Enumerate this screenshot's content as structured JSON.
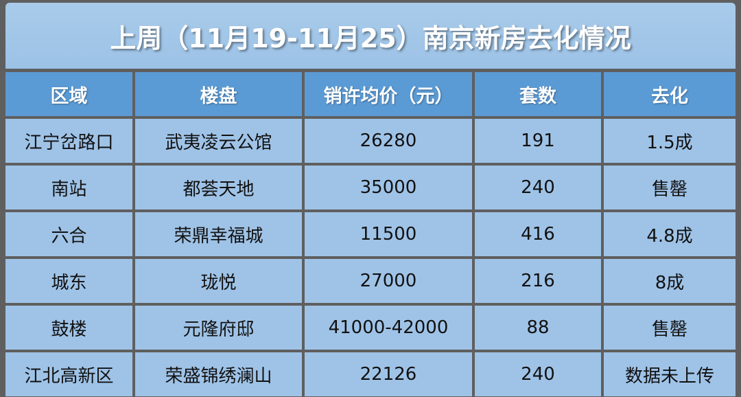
{
  "header": {
    "title": "上周（11月19-11月25）南京新房去化情况"
  },
  "table": {
    "columns": [
      "区域",
      "楼盘",
      "销许均价（元）",
      "套数",
      "去化"
    ],
    "rows": [
      [
        "江宁岔路口",
        "武夷凌云公馆",
        26280,
        191,
        "1.5成"
      ],
      [
        "南站",
        "都荟天地",
        35000,
        240,
        "售罄"
      ],
      [
        "六合",
        "荣鼎幸福城",
        11500,
        416,
        "4.8成"
      ],
      [
        "城东",
        "珑悦",
        27000,
        216,
        "8成"
      ],
      [
        "鼓楼",
        "元隆府邸",
        "41000-42000",
        88,
        "售罄"
      ],
      [
        "江北高新区",
        "荣盛锦绣澜山",
        22126,
        240,
        "数据未上传"
      ]
    ]
  }
}
